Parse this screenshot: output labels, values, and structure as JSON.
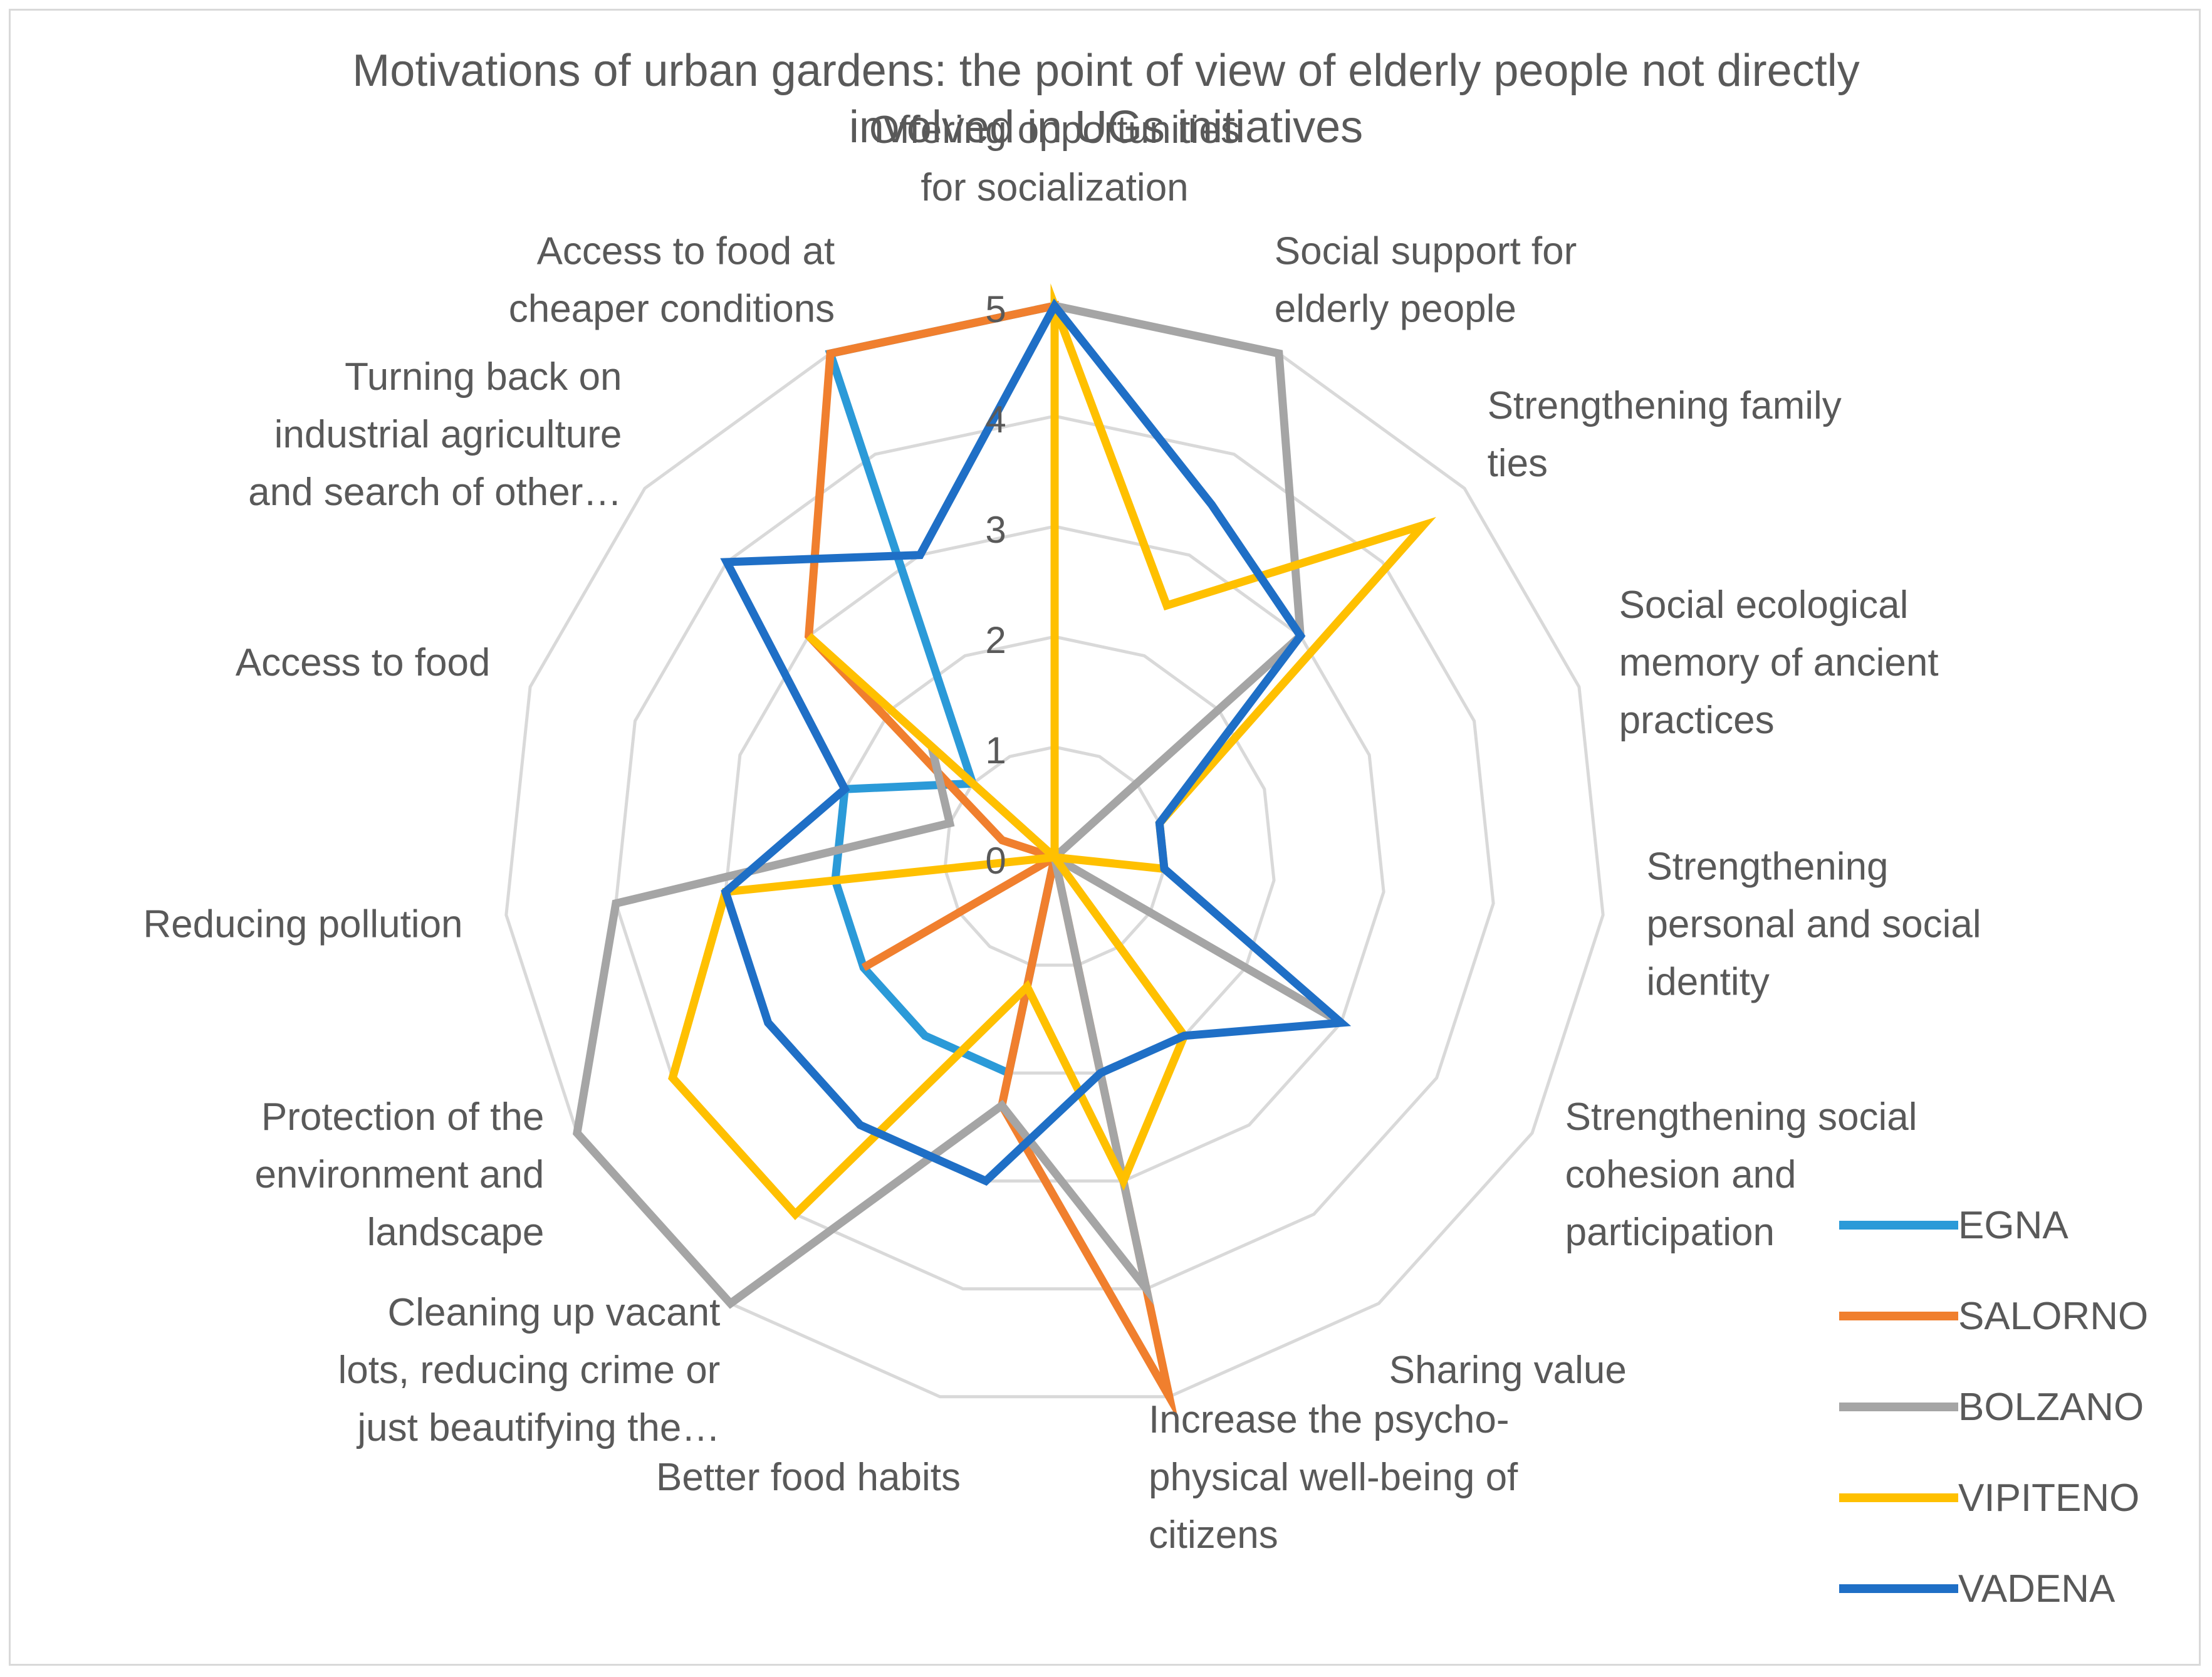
{
  "chart_data": {
    "type": "radar",
    "title_lines": [
      "Motivations of urban gardens: the point of view of elderly people not directly",
      "involved in UGs initiatives"
    ],
    "title": "Motivations of urban gardens: the point of view of elderly people not directly involved in UGs initiatives",
    "radial_range": [
      0,
      5
    ],
    "radial_ticks": [
      "0",
      "1",
      "2",
      "3",
      "4",
      "5"
    ],
    "categories": [
      {
        "name": "Offering opportunities for socialization",
        "lines": [
          "Offering opportunities",
          "for socialization"
        ]
      },
      {
        "name": "Social support for elderly people",
        "lines": [
          "Social support for",
          "elderly people"
        ]
      },
      {
        "name": "Strengthening family ties",
        "lines": [
          "Strengthening family",
          "ties"
        ]
      },
      {
        "name": "Social ecological memory of ancient practices",
        "lines": [
          "Social ecological",
          "memory of ancient",
          "practices"
        ]
      },
      {
        "name": "Strengthening personal and social identity",
        "lines": [
          "Strengthening",
          "personal and social",
          "identity"
        ]
      },
      {
        "name": "Strengthening social cohesion and participation",
        "lines": [
          "Strengthening social",
          "cohesion and",
          "participation"
        ]
      },
      {
        "name": "Sharing value",
        "lines": [
          "Sharing value"
        ]
      },
      {
        "name": "Increase the psycho-physical well-being of citizens",
        "lines": [
          "Increase the psycho-",
          "physical well-being of",
          "citizens"
        ]
      },
      {
        "name": "Better food habits",
        "lines": [
          "Better food habits"
        ]
      },
      {
        "name": "Cleaning up vacant lots, reducing crime or just beautifying the…",
        "lines": [
          "Cleaning up vacant",
          "lots, reducing crime or",
          "just beautifying the…"
        ]
      },
      {
        "name": "Protection of the environment and landscape",
        "lines": [
          "Protection of the",
          "environment and",
          "landscape"
        ]
      },
      {
        "name": "Reducing pollution",
        "lines": [
          "Reducing pollution"
        ]
      },
      {
        "name": "Access to food",
        "lines": [
          "Access to food"
        ]
      },
      {
        "name": "Turning back on industrial agriculture and search of other…",
        "lines": [
          "Turning back on",
          "industrial agriculture",
          "and search of other…"
        ]
      },
      {
        "name": "Access to food at cheaper conditions",
        "lines": [
          "Access to food at",
          "cheaper conditions"
        ]
      }
    ],
    "series": [
      {
        "name": "EGNA",
        "color": "#2b9ad8",
        "values": [
          5,
          0,
          0,
          0,
          0,
          0,
          0,
          0,
          2,
          2,
          2,
          2,
          2,
          1,
          5
        ]
      },
      {
        "name": "SALORNO",
        "color": "#f07f2e",
        "values": [
          5,
          0,
          0,
          0,
          0,
          0,
          0,
          5,
          2.3,
          0,
          2,
          0,
          0.5,
          3,
          5
        ]
      },
      {
        "name": "BOLZANO",
        "color": "#a5a5a5",
        "values": [
          5,
          5,
          3,
          0,
          0,
          3,
          0,
          4,
          2.3,
          5,
          5,
          4,
          1,
          1.5,
          0
        ]
      },
      {
        "name": "VIPITENO",
        "color": "#ffc000",
        "values": [
          5,
          2.5,
          4.5,
          1,
          1,
          0,
          2,
          3,
          1.2,
          4,
          4,
          3,
          0,
          3,
          0
        ]
      },
      {
        "name": "VADENA",
        "color": "#1f6fc6",
        "values": [
          5,
          3.5,
          3,
          1,
          1,
          3,
          2,
          2,
          3,
          3,
          3,
          3,
          2,
          4,
          3
        ]
      }
    ],
    "legend_position": "right"
  }
}
